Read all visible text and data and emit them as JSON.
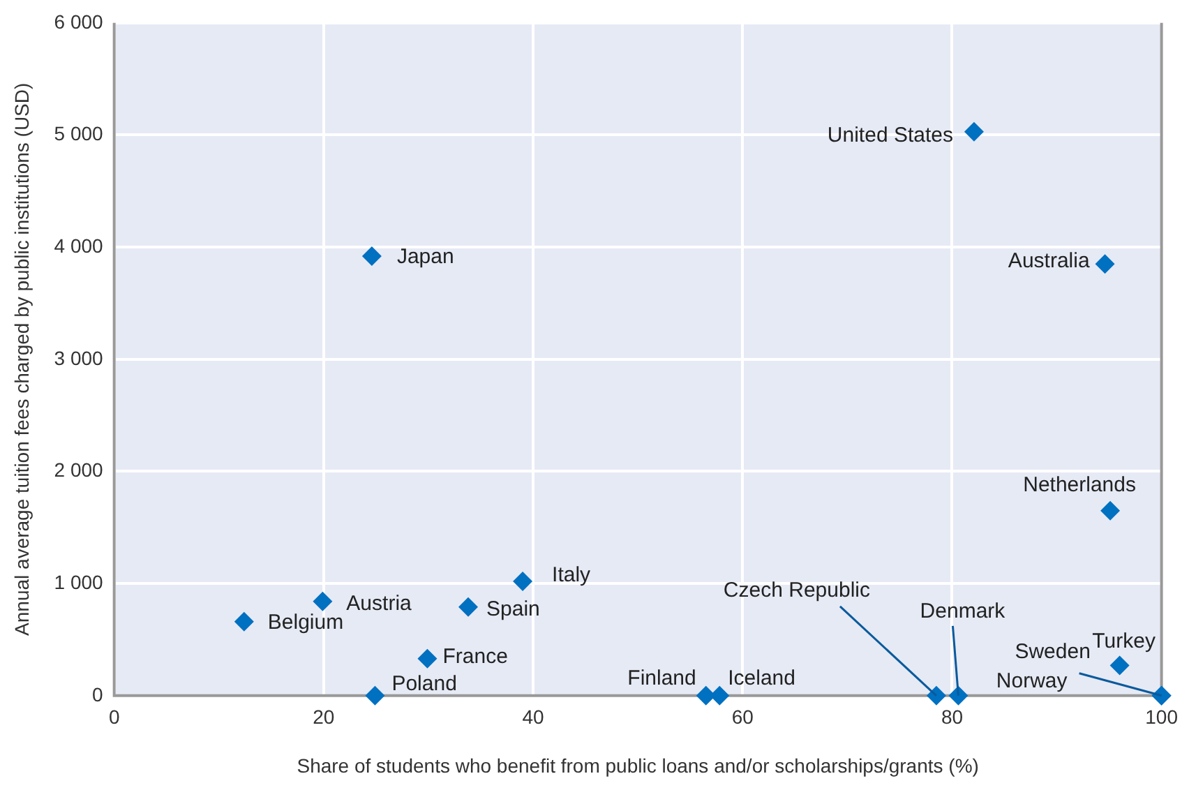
{
  "chart_data": {
    "type": "scatter",
    "xlabel": "Share of students who benefit from public loans and/or scholarships/grants (%)",
    "ylabel": "Annual average tuition fees charged by public institutions (USD)",
    "xlim": [
      0,
      100
    ],
    "xticks": [
      0,
      20,
      40,
      60,
      80,
      100
    ],
    "ylim": [
      0,
      6000
    ],
    "yticks": [
      0,
      {
        "value": 1000,
        "label": "1 000"
      },
      {
        "value": 2000,
        "label": "2 000"
      },
      {
        "value": 3000,
        "label": "3 000"
      },
      {
        "value": 4000,
        "label": "4 000"
      },
      {
        "value": 5000,
        "label": "5 000"
      },
      {
        "value": 6000,
        "label": "6 000"
      }
    ],
    "grid": true,
    "legend": false,
    "marker": "diamond",
    "series": [
      {
        "name": "United States",
        "color": "#0070c0",
        "x": [
          82.1
        ],
        "values": [
          5030
        ]
      },
      {
        "name": "Japan",
        "color": "#0070c0",
        "x": [
          24.6
        ],
        "values": [
          3920
        ]
      },
      {
        "name": "Australia",
        "color": "#0070c0",
        "x": [
          94.6
        ],
        "values": [
          3850
        ]
      },
      {
        "name": "Netherlands",
        "color": "#0070c0",
        "x": [
          95.1
        ],
        "values": [
          1650
        ]
      },
      {
        "name": "Italy",
        "color": "#0070c0",
        "x": [
          39.0
        ],
        "values": [
          1020
        ]
      },
      {
        "name": "Austria",
        "color": "#0070c0",
        "x": [
          19.9
        ],
        "values": [
          840
        ]
      },
      {
        "name": "Spain",
        "color": "#0070c0",
        "x": [
          33.8
        ],
        "values": [
          790
        ]
      },
      {
        "name": "Belgium",
        "color": "#0070c0",
        "x": [
          12.4
        ],
        "values": [
          660
        ]
      },
      {
        "name": "France",
        "color": "#0070c0",
        "x": [
          29.9
        ],
        "values": [
          330
        ]
      },
      {
        "name": "Poland",
        "color": "#0070c0",
        "x": [
          24.9
        ],
        "values": [
          0
        ]
      },
      {
        "name": "Finland",
        "color": "#0070c0",
        "x": [
          56.5
        ],
        "values": [
          0
        ]
      },
      {
        "name": "Iceland",
        "color": "#0070c0",
        "x": [
          57.8
        ],
        "values": [
          0
        ]
      },
      {
        "name": "Czech Republic",
        "color": "#0070c0",
        "x": [
          78.5
        ],
        "values": [
          0
        ]
      },
      {
        "name": "Denmark",
        "color": "#0070c0",
        "x": [
          80.6
        ],
        "values": [
          0
        ]
      },
      {
        "name": "Turkey",
        "color": "#0070c0",
        "x": [
          96.0
        ],
        "values": [
          270
        ]
      },
      {
        "name": "Sweden",
        "color": "#0070c0",
        "x": [
          100
        ],
        "values": [
          0
        ]
      },
      {
        "name": "Norway",
        "color": "#0070c0",
        "x": [
          100
        ],
        "values": [
          0
        ]
      }
    ]
  }
}
